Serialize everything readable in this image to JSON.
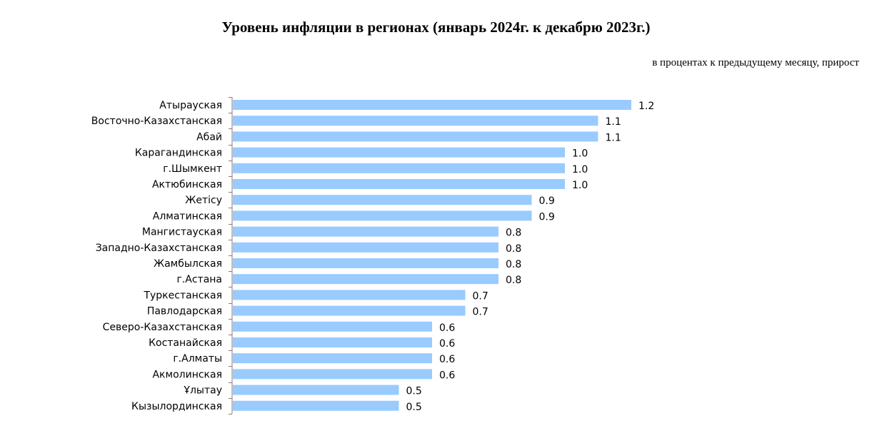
{
  "chart_data": {
    "type": "bar",
    "orientation": "horizontal",
    "title": "Уровень инфляции в регионах (январь 2024г. к декабрю 2023г.)",
    "subtitle": "в процентах к предыдущему месяцу, прирост",
    "categories": [
      "Атырауская",
      "Восточно-Казахстанская",
      "Абай",
      "Карагандинская",
      "г.Шымкент",
      "Актюбинская",
      "Жетісу",
      "Алматинская",
      "Мангистауская",
      "Западно-Казахстанская",
      "Жамбылская",
      "г.Астана",
      "Туркестанская",
      "Павлодарская",
      "Северо-Казахстанская",
      "Костанайская",
      "г.Алматы",
      "Акмолинская",
      "Ұлытау",
      "Кызылординская"
    ],
    "values": [
      1.2,
      1.1,
      1.1,
      1.0,
      1.0,
      1.0,
      0.9,
      0.9,
      0.8,
      0.8,
      0.8,
      0.8,
      0.7,
      0.7,
      0.6,
      0.6,
      0.6,
      0.6,
      0.5,
      0.5
    ],
    "value_labels": [
      "1.2",
      "1.1",
      "1.1",
      "1.0",
      "1.0",
      "1.0",
      "0.9",
      "0.9",
      "0.8",
      "0.8",
      "0.8",
      "0.8",
      "0.7",
      "0.7",
      "0.6",
      "0.6",
      "0.6",
      "0.6",
      "0.5",
      "0.5"
    ],
    "xlim": [
      0,
      1.2
    ],
    "grid": false,
    "legend": "none",
    "bar_color": "#99cbff",
    "axis_color": "#808080"
  }
}
